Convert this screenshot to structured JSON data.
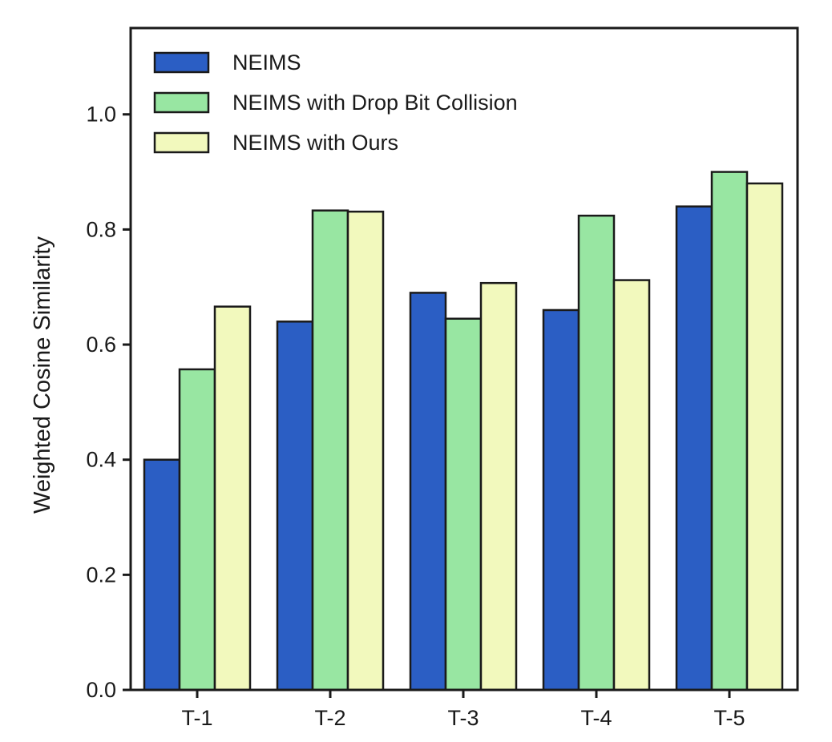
{
  "chart_data": {
    "type": "bar",
    "title": "",
    "xlabel": "",
    "ylabel": "Weighted Cosine Similarity",
    "ylim": [
      0,
      1.15
    ],
    "yticks": [
      "0.0",
      "0.2",
      "0.4",
      "0.6",
      "0.8",
      "1.0"
    ],
    "grid": false,
    "legend_position": "top-left",
    "categories": [
      "T-1",
      "T-2",
      "T-3",
      "T-4",
      "T-5"
    ],
    "series": [
      {
        "name": "NEIMS",
        "color": "#2b5ec4",
        "values": [
          0.4,
          0.64,
          0.69,
          0.66,
          0.84
        ]
      },
      {
        "name": "NEIMS with Drop Bit Collision",
        "color": "#98e6a2",
        "values": [
          0.557,
          0.833,
          0.645,
          0.824,
          0.9
        ]
      },
      {
        "name": "NEIMS with Ours",
        "color": "#f2f9bd",
        "values": [
          0.666,
          0.831,
          0.707,
          0.712,
          0.88
        ]
      }
    ]
  }
}
